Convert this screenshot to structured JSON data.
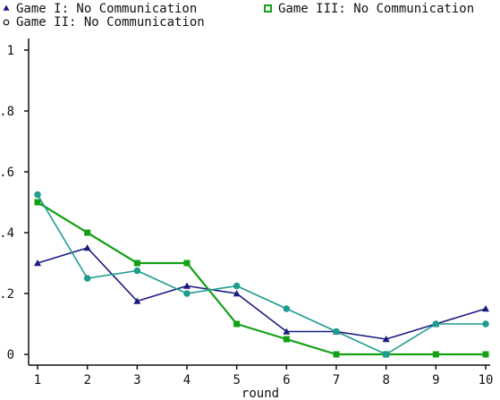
{
  "chart_data": {
    "type": "line",
    "title": "",
    "xlabel": "round",
    "ylabel": "",
    "x": [
      1,
      2,
      3,
      4,
      5,
      6,
      7,
      8,
      9,
      10
    ],
    "xticks": [
      "1",
      "2",
      "3",
      "4",
      "5",
      "6",
      "7",
      "8",
      "9",
      "10"
    ],
    "yticks": [
      {
        "value": 0,
        "label": "0"
      },
      {
        "value": 0.2,
        "label": ".2"
      },
      {
        "value": 0.4,
        "label": ".4"
      },
      {
        "value": 0.6,
        "label": ".6"
      },
      {
        "value": 0.8,
        "label": ".8"
      },
      {
        "value": 1,
        "label": "1"
      }
    ],
    "xlim": [
      1,
      10
    ],
    "ylim": [
      0,
      1
    ],
    "grid": false,
    "legend_position": "top-left",
    "series": [
      {
        "name": "Game I: No Communication",
        "marker": "triangle",
        "color": "#1a1a80",
        "values": [
          0.3,
          0.35,
          0.175,
          0.225,
          0.2,
          0.075,
          0.075,
          0.05,
          0.1,
          0.15
        ]
      },
      {
        "name": "Game II: No Communication",
        "marker": "circle",
        "color": "#1e9c8f",
        "values": [
          0.525,
          0.25,
          0.275,
          0.2,
          0.225,
          0.15,
          0.075,
          0.0,
          0.1,
          0.1
        ]
      },
      {
        "name": "Game III: No Communication",
        "marker": "square",
        "color": "#14a014",
        "values": [
          0.5,
          0.4,
          0.3,
          0.3,
          0.1,
          0.05,
          0.0,
          0.0,
          0.0,
          0.0
        ]
      }
    ]
  }
}
